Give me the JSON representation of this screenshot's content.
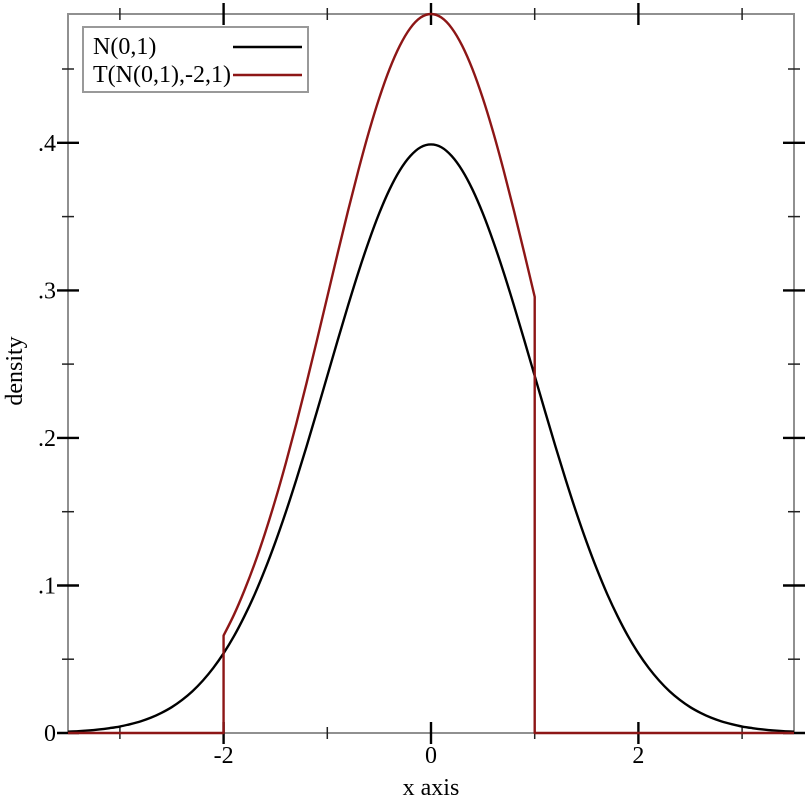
{
  "chart_data": {
    "type": "line",
    "title": "",
    "xlabel": "x axis",
    "ylabel": "density",
    "xlim": [
      -3.5,
      3.5
    ],
    "ylim": [
      0,
      0.4873
    ],
    "grid": false,
    "legend_position": "top-left",
    "frame_color": "#909090",
    "major_tick_color": "#000000",
    "minor_tick_color": "#222222",
    "legend_border_color": "#999999",
    "x_major_ticks": [
      -2,
      0,
      2
    ],
    "x_tick_labels": [
      "-2",
      "0",
      "2"
    ],
    "x_minor_ticks": [
      -3,
      -1,
      1,
      3
    ],
    "y_major_ticks": [
      0,
      0.1,
      0.2,
      0.3,
      0.4
    ],
    "y_tick_labels": [
      "0",
      ".1",
      ".2",
      ".3",
      ".4"
    ],
    "y_minor_ticks": [
      0.05,
      0.15,
      0.25,
      0.35,
      0.45
    ],
    "series": [
      {
        "id": "normal-curve",
        "name": "N(0,1)",
        "color": "#000000",
        "segments": [
          {
            "mode": "smooth",
            "points": [
              [
                -3.5,
                0.0009
              ],
              [
                -3.4,
                0.0012
              ],
              [
                -3.3,
                0.0017
              ],
              [
                -3.2,
                0.0024
              ],
              [
                -3.1,
                0.0033
              ],
              [
                -3.0,
                0.0044
              ],
              [
                -2.9,
                0.006
              ],
              [
                -2.8,
                0.0079
              ],
              [
                -2.7,
                0.0104
              ],
              [
                -2.6,
                0.0136
              ],
              [
                -2.5,
                0.0175
              ],
              [
                -2.4,
                0.0224
              ],
              [
                -2.3,
                0.0283
              ],
              [
                -2.2,
                0.0355
              ],
              [
                -2.1,
                0.044
              ],
              [
                -2.0,
                0.054
              ],
              [
                -1.9,
                0.0656
              ],
              [
                -1.8,
                0.079
              ],
              [
                -1.7,
                0.094
              ],
              [
                -1.6,
                0.1109
              ],
              [
                -1.5,
                0.1295
              ],
              [
                -1.4,
                0.1497
              ],
              [
                -1.3,
                0.1714
              ],
              [
                -1.2,
                0.1942
              ],
              [
                -1.1,
                0.2179
              ],
              [
                -1.0,
                0.242
              ],
              [
                -0.9,
                0.2661
              ],
              [
                -0.8,
                0.2897
              ],
              [
                -0.7,
                0.3123
              ],
              [
                -0.6,
                0.3332
              ],
              [
                -0.5,
                0.3521
              ],
              [
                -0.4,
                0.3683
              ],
              [
                -0.3,
                0.3814
              ],
              [
                -0.2,
                0.391
              ],
              [
                -0.1,
                0.397
              ],
              [
                0.0,
                0.3989
              ],
              [
                0.1,
                0.397
              ],
              [
                0.2,
                0.391
              ],
              [
                0.3,
                0.3814
              ],
              [
                0.4,
                0.3683
              ],
              [
                0.5,
                0.3521
              ],
              [
                0.6,
                0.3332
              ],
              [
                0.7,
                0.3123
              ],
              [
                0.8,
                0.2897
              ],
              [
                0.9,
                0.2661
              ],
              [
                1.0,
                0.242
              ],
              [
                1.1,
                0.2179
              ],
              [
                1.2,
                0.1942
              ],
              [
                1.3,
                0.1714
              ],
              [
                1.4,
                0.1497
              ],
              [
                1.5,
                0.1295
              ],
              [
                1.6,
                0.1109
              ],
              [
                1.7,
                0.094
              ],
              [
                1.8,
                0.079
              ],
              [
                1.9,
                0.0656
              ],
              [
                2.0,
                0.054
              ],
              [
                2.1,
                0.044
              ],
              [
                2.2,
                0.0355
              ],
              [
                2.3,
                0.0283
              ],
              [
                2.4,
                0.0224
              ],
              [
                2.5,
                0.0175
              ],
              [
                2.6,
                0.0136
              ],
              [
                2.7,
                0.0104
              ],
              [
                2.8,
                0.0079
              ],
              [
                2.9,
                0.006
              ],
              [
                3.0,
                0.0044
              ],
              [
                3.1,
                0.0033
              ],
              [
                3.2,
                0.0024
              ],
              [
                3.3,
                0.0017
              ],
              [
                3.4,
                0.0012
              ],
              [
                3.5,
                0.0009
              ]
            ]
          }
        ]
      },
      {
        "id": "truncated-curve",
        "name": "T(N(0,1),-2,1)",
        "color": "#8d1616",
        "segments": [
          {
            "mode": "linear",
            "points": [
              [
                -3.5,
                0
              ],
              [
                -2.0,
                0
              ]
            ]
          },
          {
            "mode": "linear",
            "points": [
              [
                -2.0,
                0
              ],
              [
                -2.0,
                0.066
              ]
            ]
          },
          {
            "mode": "smooth",
            "points": [
              [
                -2.0,
                0.066
              ],
              [
                -1.9,
                0.0801
              ],
              [
                -1.8,
                0.0965
              ],
              [
                -1.7,
                0.1149
              ],
              [
                -1.6,
                0.1355
              ],
              [
                -1.5,
                0.1582
              ],
              [
                -1.4,
                0.1829
              ],
              [
                -1.3,
                0.2093
              ],
              [
                -1.2,
                0.2372
              ],
              [
                -1.1,
                0.2661
              ],
              [
                -1.0,
                0.2956
              ],
              [
                -0.9,
                0.3251
              ],
              [
                -0.8,
                0.3539
              ],
              [
                -0.7,
                0.3814
              ],
              [
                -0.6,
                0.4071
              ],
              [
                -0.5,
                0.4301
              ],
              [
                -0.4,
                0.4499
              ],
              [
                -0.3,
                0.4659
              ],
              [
                -0.2,
                0.4777
              ],
              [
                -0.1,
                0.4849
              ],
              [
                0.0,
                0.4873
              ],
              [
                0.1,
                0.4849
              ],
              [
                0.2,
                0.4777
              ],
              [
                0.3,
                0.4659
              ],
              [
                0.4,
                0.4499
              ],
              [
                0.5,
                0.4301
              ],
              [
                0.6,
                0.4071
              ],
              [
                0.7,
                0.3814
              ],
              [
                0.8,
                0.3539
              ],
              [
                0.9,
                0.3251
              ],
              [
                1.0,
                0.2956
              ]
            ]
          },
          {
            "mode": "linear",
            "points": [
              [
                1.0,
                0.2956
              ],
              [
                1.0,
                0
              ]
            ]
          },
          {
            "mode": "linear",
            "points": [
              [
                1.0,
                0
              ],
              [
                3.5,
                0
              ]
            ]
          }
        ]
      }
    ]
  }
}
